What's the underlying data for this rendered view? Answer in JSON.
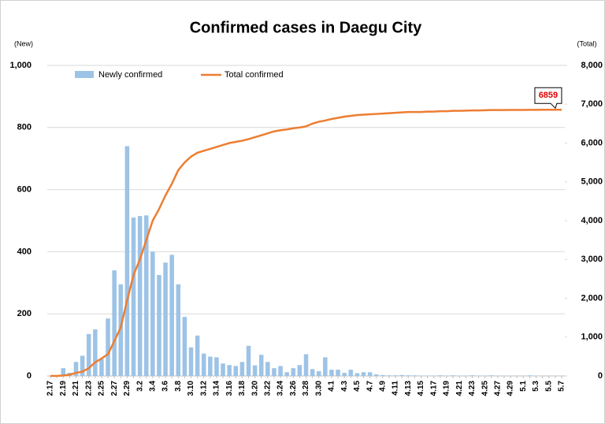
{
  "chart_data": {
    "type": "bar-line",
    "title": "Confirmed cases in Daegu City",
    "y_label": "(New)",
    "y2_label": "(Total)",
    "categories": [
      "2.17",
      null,
      "2.19",
      null,
      "2.21",
      null,
      "2.23",
      null,
      "2.25",
      null,
      "2.27",
      null,
      "2.29",
      null,
      "3.2",
      null,
      "3.4",
      null,
      "3.6",
      null,
      "3.8",
      null,
      "3.10",
      null,
      "3.12",
      null,
      "3.14",
      null,
      "3.16",
      null,
      "3.18",
      null,
      "3.20",
      null,
      "3.22",
      null,
      "3.24",
      null,
      "3.26",
      null,
      "3.28",
      null,
      "3.30",
      null,
      "4.1",
      null,
      "4.3",
      null,
      "4.5",
      null,
      "4.7",
      null,
      "4.9",
      null,
      "4.11",
      null,
      "4.13",
      null,
      "4.15",
      null,
      "4.17",
      null,
      "4.19",
      null,
      "4.21",
      null,
      "4.23",
      null,
      "4.25",
      null,
      "4.27",
      null,
      "4.29",
      null,
      "5.1",
      null,
      "5.3",
      null,
      "5.5",
      null,
      "5.7"
    ],
    "series": [
      {
        "name": "Newly confirmed",
        "type": "bar",
        "color": "#9dc3e6",
        "values": [
          0,
          1,
          25,
          10,
          45,
          65,
          135,
          150,
          55,
          185,
          340,
          295,
          740,
          510,
          515,
          517,
          400,
          325,
          365,
          390,
          295,
          190,
          92,
          130,
          72,
          62,
          60,
          40,
          35,
          32,
          45,
          97,
          34,
          68,
          45,
          25,
          32,
          12,
          25,
          35,
          70,
          22,
          15,
          60,
          20,
          20,
          10,
          20,
          9,
          12,
          12,
          5,
          3,
          2,
          2,
          3,
          2,
          2,
          1,
          1,
          0,
          2,
          1,
          2,
          1,
          1,
          2,
          1,
          1,
          2,
          1,
          0,
          1,
          1,
          0,
          2,
          1,
          0,
          1,
          0,
          1
        ]
      },
      {
        "name": "Total confirmed",
        "type": "line",
        "axis": "y2",
        "color": "#ed7d31",
        "values": [
          0,
          0,
          10,
          30,
          80,
          110,
          200,
          350,
          450,
          560,
          900,
          1250,
          1950,
          2600,
          3000,
          3500,
          4000,
          4300,
          4650,
          4950,
          5300,
          5500,
          5650,
          5750,
          5800,
          5850,
          5900,
          5950,
          6000,
          6030,
          6060,
          6100,
          6150,
          6200,
          6250,
          6300,
          6330,
          6350,
          6380,
          6400,
          6430,
          6500,
          6550,
          6580,
          6620,
          6650,
          6680,
          6700,
          6720,
          6730,
          6740,
          6750,
          6760,
          6770,
          6780,
          6790,
          6800,
          6800,
          6800,
          6810,
          6810,
          6820,
          6820,
          6830,
          6830,
          6835,
          6840,
          6840,
          6845,
          6850,
          6850,
          6850,
          6852,
          6853,
          6854,
          6855,
          6856,
          6857,
          6858,
          6858,
          6859
        ]
      }
    ],
    "ylim": [
      0,
      1000
    ],
    "yticks": [
      0,
      200,
      400,
      600,
      800,
      {
        "value": 1000,
        "label": "1,000"
      }
    ],
    "y2lim": [
      0,
      8000
    ],
    "y2ticks": [
      0,
      {
        "value": 1000,
        "label": "1,000"
      },
      {
        "value": 2000,
        "label": "2,000"
      },
      {
        "value": 3000,
        "label": "3,000"
      },
      {
        "value": 4000,
        "label": "4,000"
      },
      {
        "value": 5000,
        "label": "5,000"
      },
      {
        "value": 6000,
        "label": "6,000"
      },
      {
        "value": 7000,
        "label": "7,000"
      },
      {
        "value": 8000,
        "label": "8,000"
      }
    ],
    "grid": true,
    "legend": "top-left"
  }
}
